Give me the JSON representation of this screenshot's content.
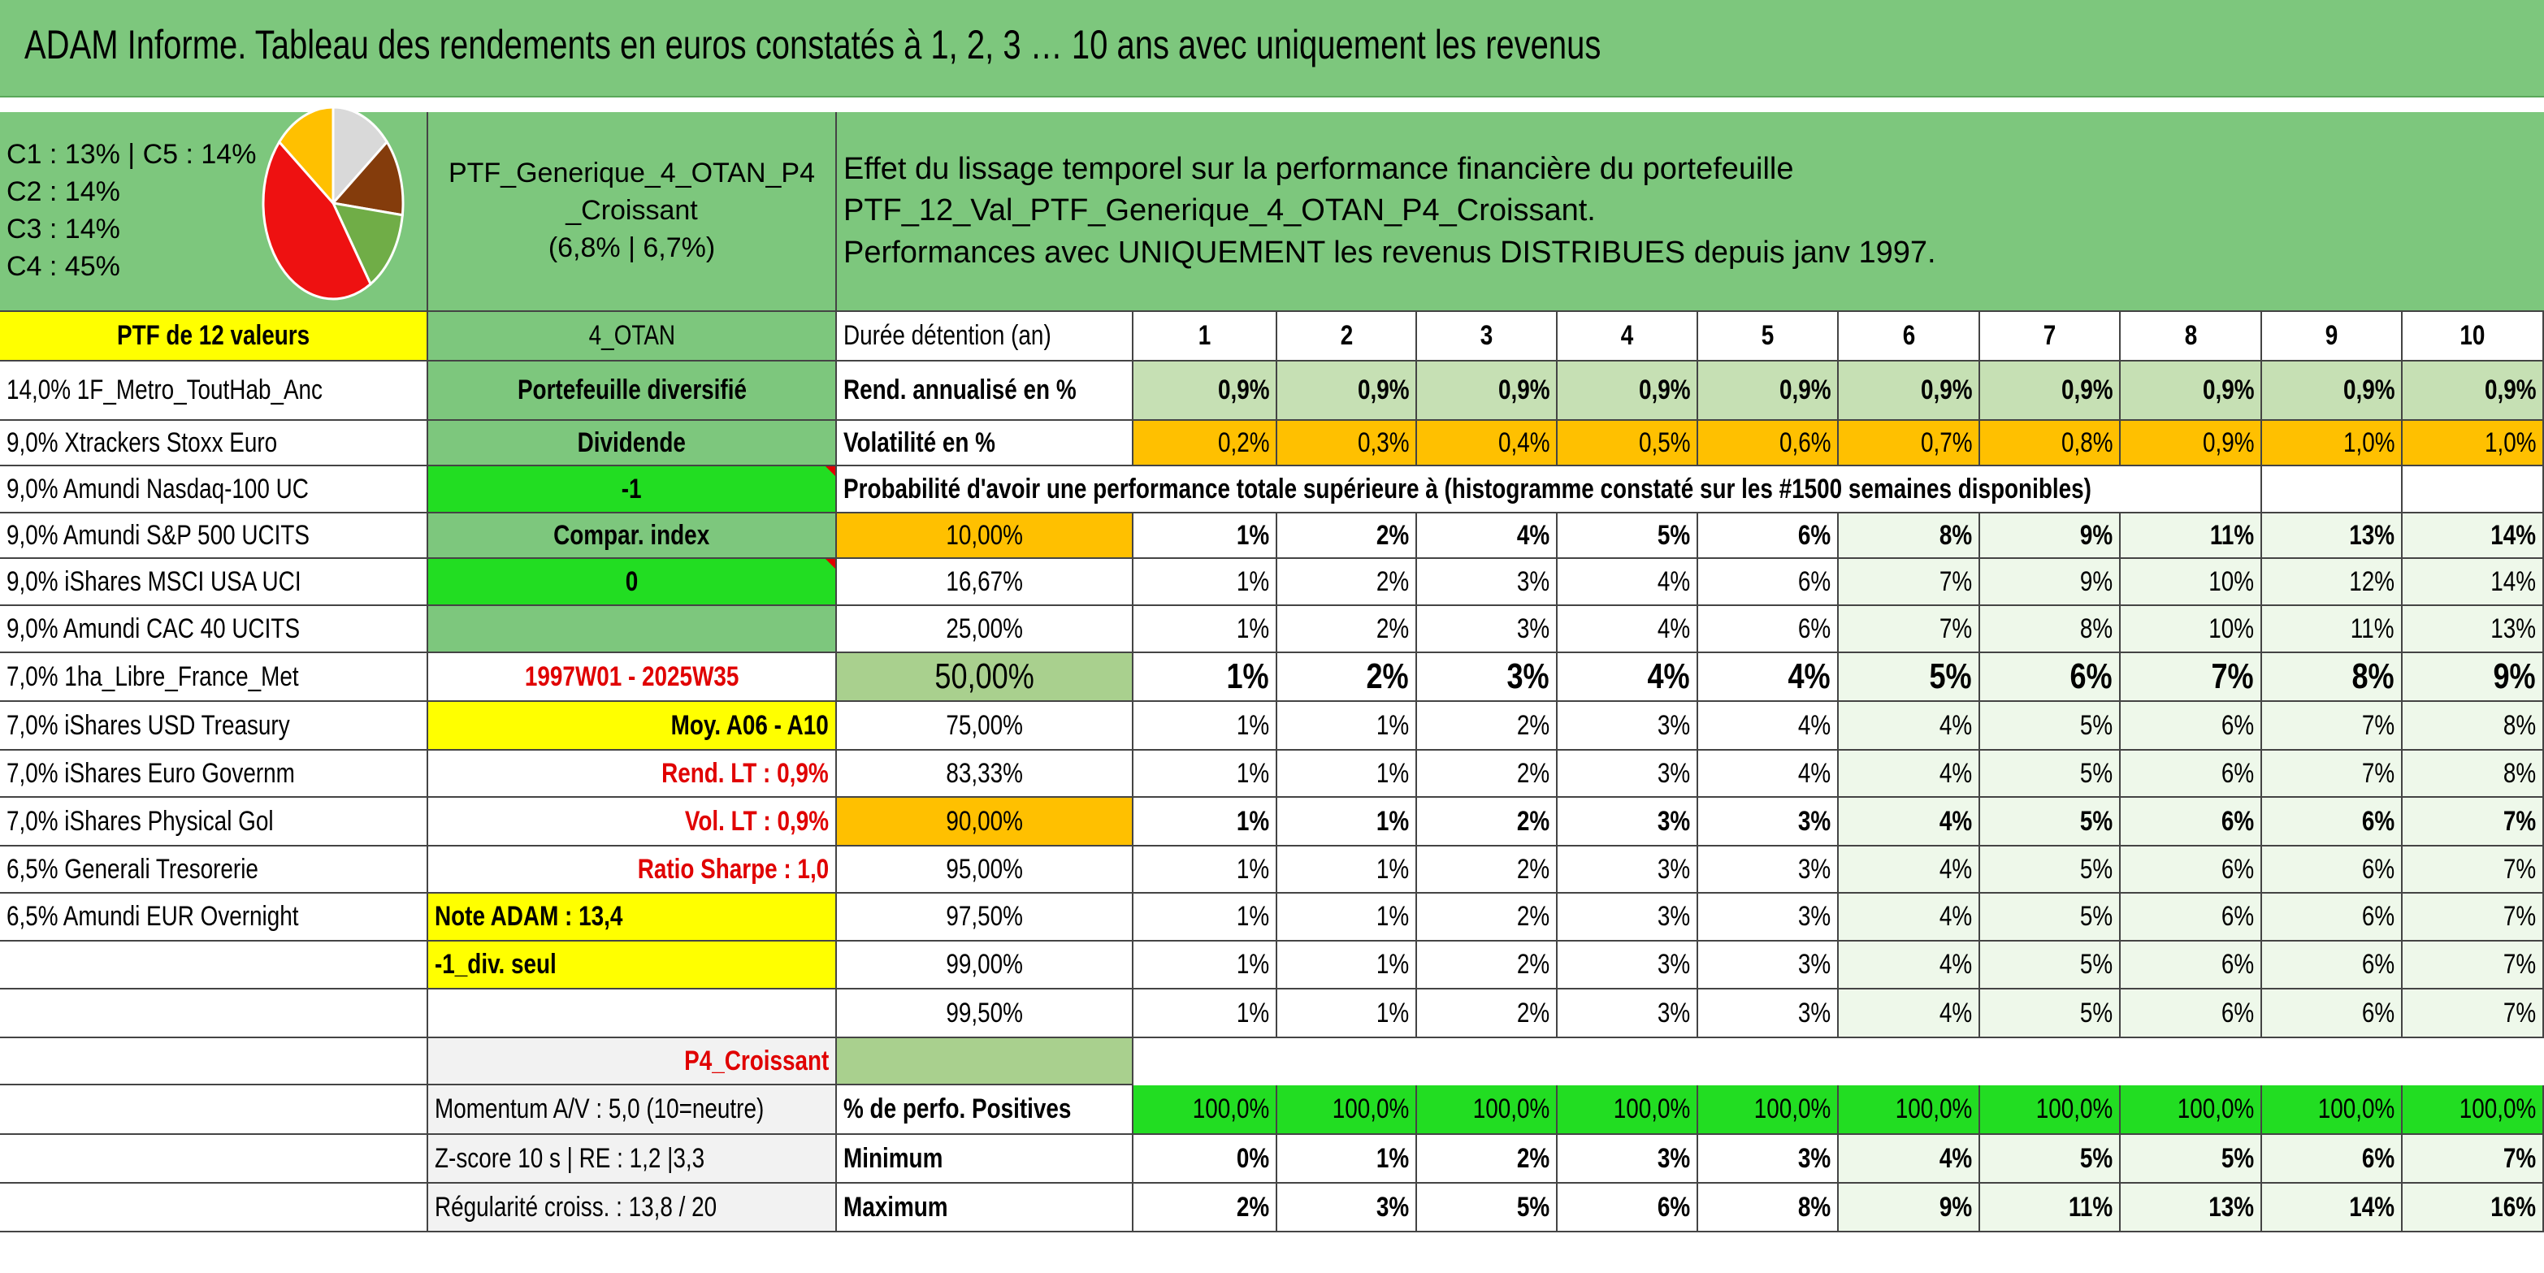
{
  "title": "ADAM Informe. Tableau des rendements en euros constatés à 1, 2, 3 … 10 ans avec uniquement les revenus",
  "allocation_labels": [
    "C1 : 13% | C5 : 14%",
    "C2 : 14%",
    "C3 : 14%",
    "C4 : 45%"
  ],
  "pie": {
    "slices": [
      {
        "name": "C4",
        "value": 45,
        "color": "#ee1111"
      },
      {
        "name": "C3",
        "value": 14,
        "color": "#ffc000"
      },
      {
        "name": "C5",
        "value": 14,
        "color": "#d9d9d9"
      },
      {
        "name": "C1",
        "value": 13,
        "color": "#843c0c"
      },
      {
        "name": "C2",
        "value": 14,
        "color": "#70ad47"
      }
    ]
  },
  "portfolio": {
    "name_line1": "PTF_Generique_4_OTAN_P4",
    "name_line2": "_Croissant",
    "name_line3": "(6,8% | 6,7%)",
    "header_line1": "Effet du lissage temporel sur la performance financière du portefeuille PTF_12_Val_PTF_Generique_4_OTAN_P4_Croissant.",
    "header_line2": "Performances avec UNIQUEMENT les revenus DISTRIBUES depuis janv 1997."
  },
  "left_header": "PTF de 12 valeurs",
  "holdings": [
    "14,0% 1F_Metro_ToutHab_Anc",
    "9,0% Xtrackers Stoxx Euro",
    "9,0% Amundi Nasdaq-100 UC",
    "9,0% Amundi S&P 500 UCITS",
    "9,0% iShares MSCI USA UCI",
    "9,0% Amundi CAC 40 UCITS",
    "7,0% 1ha_Libre_France_Met",
    "7,0% iShares USD Treasury",
    "7,0% iShares Euro Governm",
    "7,0% iShares Physical Gol",
    "6,5% Generali Tresorerie",
    "6,5% Amundi EUR Overnight"
  ],
  "middle": {
    "otan": "4_OTAN",
    "diversified": "Portefeuille diversifié",
    "dividende": "Dividende",
    "minus_one": "-1",
    "compar_index": "Compar. index",
    "zero": "0",
    "period": "1997W01 - 2025W35",
    "moy": "Moy. A06 - A10",
    "rend_lt": "Rend. LT : 0,9%",
    "vol_lt": "Vol. LT : 0,9%",
    "sharpe": "Ratio Sharpe : 1,0",
    "note": "Note ADAM : 13,4",
    "div_seul": "-1_div. seul",
    "p4": "P4_Croissant",
    "momentum": "Momentum A/V : 5,0 (10=neutre)",
    "zscore": "Z-score 10 s | RE : 1,2 |3,3",
    "regularite": "Régularité croiss. : 13,8 / 20"
  },
  "table": {
    "duration_label": "Durée détention (an)",
    "years": [
      "1",
      "2",
      "3",
      "4",
      "5",
      "6",
      "7",
      "8",
      "9",
      "10"
    ],
    "rend_label": "Rend. annualisé en %",
    "rend": [
      "0,9%",
      "0,9%",
      "0,9%",
      "0,9%",
      "0,9%",
      "0,9%",
      "0,9%",
      "0,9%",
      "0,9%",
      "0,9%"
    ],
    "vol_label": "Volatilité en %",
    "vol": [
      "0,2%",
      "0,3%",
      "0,4%",
      "0,5%",
      "0,6%",
      "0,7%",
      "0,8%",
      "0,9%",
      "1,0%",
      "1,0%"
    ],
    "proba_label": "Probabilité d'avoir une performance totale supérieure à (histogramme constaté sur les #1500 semaines disponibles)",
    "proba_rows": [
      {
        "pct": "10,00%",
        "values": [
          "1%",
          "2%",
          "4%",
          "5%",
          "6%",
          "8%",
          "9%",
          "11%",
          "13%",
          "14%"
        ]
      },
      {
        "pct": "16,67%",
        "values": [
          "1%",
          "2%",
          "3%",
          "4%",
          "6%",
          "7%",
          "9%",
          "10%",
          "12%",
          "14%"
        ]
      },
      {
        "pct": "25,00%",
        "values": [
          "1%",
          "2%",
          "3%",
          "4%",
          "6%",
          "7%",
          "8%",
          "10%",
          "11%",
          "13%"
        ]
      },
      {
        "pct": "50,00%",
        "values": [
          "1%",
          "2%",
          "3%",
          "4%",
          "4%",
          "5%",
          "6%",
          "7%",
          "8%",
          "9%"
        ]
      },
      {
        "pct": "75,00%",
        "values": [
          "1%",
          "1%",
          "2%",
          "3%",
          "4%",
          "4%",
          "5%",
          "6%",
          "7%",
          "8%"
        ]
      },
      {
        "pct": "83,33%",
        "values": [
          "1%",
          "1%",
          "2%",
          "3%",
          "4%",
          "4%",
          "5%",
          "6%",
          "7%",
          "8%"
        ]
      },
      {
        "pct": "90,00%",
        "values": [
          "1%",
          "1%",
          "2%",
          "3%",
          "3%",
          "4%",
          "5%",
          "6%",
          "6%",
          "7%"
        ]
      },
      {
        "pct": "95,00%",
        "values": [
          "1%",
          "1%",
          "2%",
          "3%",
          "3%",
          "4%",
          "5%",
          "6%",
          "6%",
          "7%"
        ]
      },
      {
        "pct": "97,50%",
        "values": [
          "1%",
          "1%",
          "2%",
          "3%",
          "3%",
          "4%",
          "5%",
          "6%",
          "6%",
          "7%"
        ]
      },
      {
        "pct": "99,00%",
        "values": [
          "1%",
          "1%",
          "2%",
          "3%",
          "3%",
          "4%",
          "5%",
          "6%",
          "6%",
          "7%"
        ]
      },
      {
        "pct": "99,50%",
        "values": [
          "1%",
          "1%",
          "2%",
          "3%",
          "3%",
          "4%",
          "5%",
          "6%",
          "6%",
          "7%"
        ]
      }
    ],
    "positive_label": "% de perfo. Positives",
    "positive": [
      "100,0%",
      "100,0%",
      "100,0%",
      "100,0%",
      "100,0%",
      "100,0%",
      "100,0%",
      "100,0%",
      "100,0%",
      "100,0%"
    ],
    "min_label": "Minimum",
    "min": [
      "0%",
      "1%",
      "2%",
      "3%",
      "3%",
      "4%",
      "5%",
      "5%",
      "6%",
      "7%"
    ],
    "max_label": "Maximum",
    "max": [
      "2%",
      "3%",
      "5%",
      "6%",
      "8%",
      "9%",
      "11%",
      "13%",
      "14%",
      "16%"
    ]
  }
}
